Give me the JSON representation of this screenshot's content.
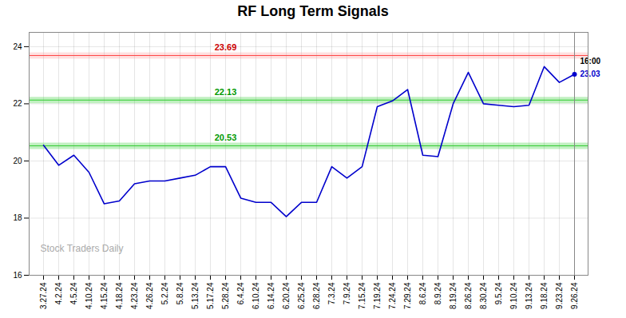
{
  "chart_data": {
    "type": "line",
    "title": "RF Long Term Signals",
    "categories": [
      "3.27.24",
      "4.2.24",
      "4.5.24",
      "4.10.24",
      "4.15.24",
      "4.18.24",
      "4.23.24",
      "4.26.24",
      "5.2.24",
      "5.8.24",
      "5.13.24",
      "5.17.24",
      "5.28.24",
      "6.4.24",
      "6.10.24",
      "6.14.24",
      "6.20.24",
      "6.25.24",
      "6.28.24",
      "7.3.24",
      "7.9.24",
      "7.15.24",
      "7.19.24",
      "7.24.24",
      "7.29.24",
      "8.6.24",
      "8.9.24",
      "8.19.24",
      "8.26.24",
      "8.30.24",
      "9.5.24",
      "9.10.24",
      "9.13.24",
      "9.18.24",
      "9.23.24",
      "9.26.24"
    ],
    "values": [
      20.55,
      19.85,
      20.2,
      19.6,
      18.5,
      18.6,
      19.2,
      19.3,
      19.3,
      19.4,
      19.5,
      19.8,
      19.8,
      18.7,
      18.55,
      18.55,
      18.05,
      18.55,
      18.55,
      19.8,
      19.4,
      19.8,
      21.9,
      22.1,
      22.5,
      20.2,
      20.15,
      22.0,
      23.1,
      22.0,
      21.95,
      21.9,
      21.95,
      23.3,
      22.75,
      23.03
    ],
    "color": "#0000cc",
    "marker": "last",
    "ylim": [
      16,
      24.5
    ],
    "yticks": [
      16,
      18,
      20,
      22,
      24
    ],
    "grid": true,
    "hlines": [
      {
        "value": 23.69,
        "label": "23.69",
        "color": "#ff4444",
        "band_color": "#ff9999",
        "text_color": "#cc0000"
      },
      {
        "value": 22.13,
        "label": "22.13",
        "color": "#33cc33",
        "band_color": "#33cc33",
        "text_color": "#009900"
      },
      {
        "value": 20.53,
        "label": "20.53",
        "color": "#33cc33",
        "band_color": "#33cc33",
        "text_color": "#009900"
      }
    ],
    "annotations": [
      {
        "text": "16:00",
        "x": "9.26.24",
        "y": 23.03,
        "color": "#000000"
      },
      {
        "text": "23.03",
        "x": "9.26.24",
        "y": 23.03,
        "color": "#0000cc"
      },
      {
        "text": "Stock Traders Daily",
        "color": "#aaaaaa"
      }
    ]
  }
}
